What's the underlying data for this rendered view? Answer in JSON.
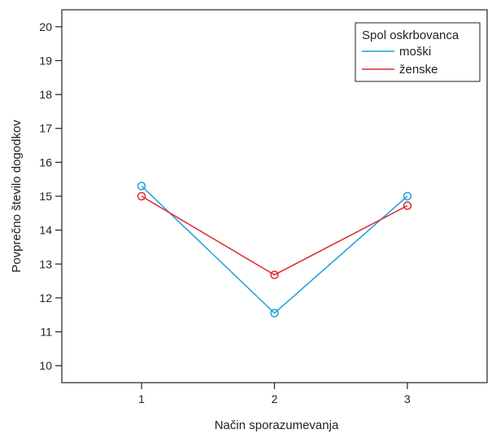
{
  "chart_data": {
    "type": "line",
    "xlabel": "Način sporazumevanja",
    "ylabel": "Povprečno število dogodkov",
    "categories": [
      "1",
      "2",
      "3"
    ],
    "x": [
      1,
      2,
      3
    ],
    "xlim": [
      0.4,
      3.6
    ],
    "ylim": [
      9.5,
      20.5
    ],
    "yticks": [
      10,
      11,
      12,
      13,
      14,
      15,
      16,
      17,
      18,
      19,
      20
    ],
    "grid": false,
    "legend": {
      "title": "Spol oskrbovanca",
      "placement": "top-right"
    },
    "series": [
      {
        "name": "moški",
        "values": [
          15.3,
          11.55,
          15.0
        ],
        "color": "#1aa0d8"
      },
      {
        "name": "ženske",
        "values": [
          15.0,
          12.68,
          14.72
        ],
        "color": "#e0282e"
      }
    ]
  }
}
